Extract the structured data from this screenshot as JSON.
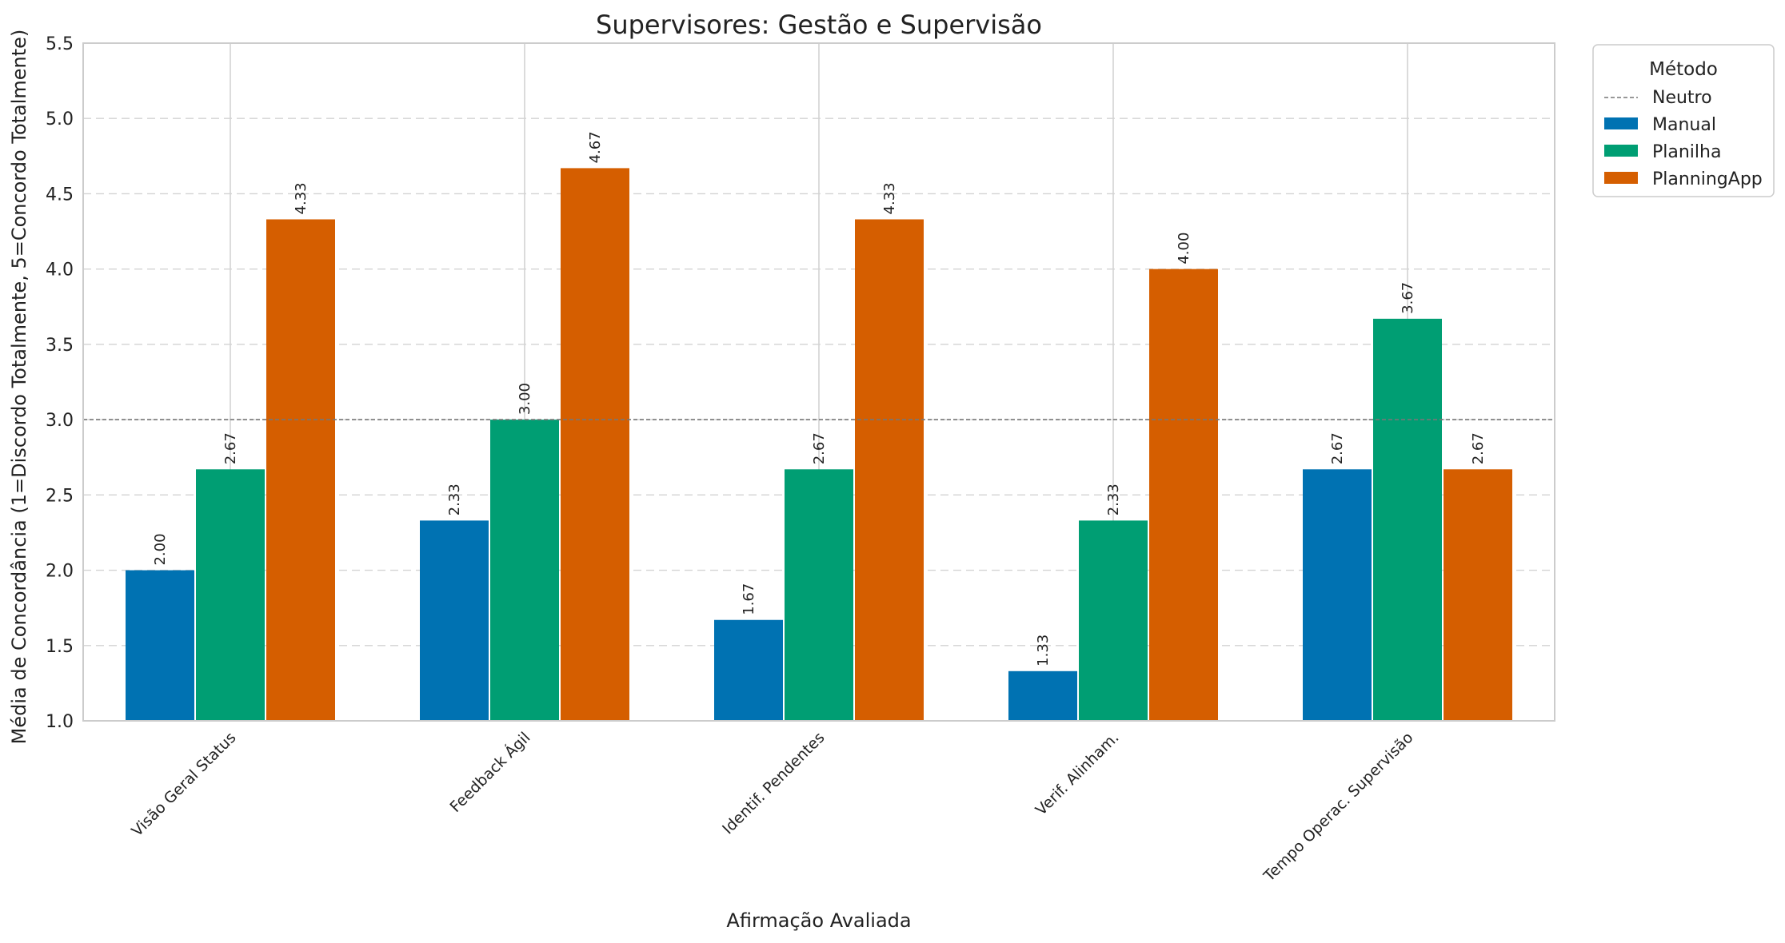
{
  "chart_data": {
    "type": "bar",
    "title": "Supervisores: Gestão e Supervisão",
    "xlabel": "Afirmação Avaliada",
    "ylabel": "Média de Concordância (1=Discordo Totalmente, 5=Concordo Totalmente)",
    "ylim": [
      1.0,
      5.5
    ],
    "yticks": [
      "1.0",
      "1.5",
      "2.0",
      "2.5",
      "3.0",
      "3.5",
      "4.0",
      "4.5",
      "5.0",
      "5.5"
    ],
    "categories": [
      "Visão Geral Status",
      "Feedback Ágil",
      "Identif. Pendentes",
      "Verif. Alinham.",
      "Tempo Operac. Supervisão"
    ],
    "series": [
      {
        "name": "Manual",
        "color": "#0072b2",
        "values": [
          2.0,
          2.33,
          1.67,
          1.33,
          2.67
        ],
        "labels": [
          "2.00",
          "2.33",
          "1.67",
          "1.33",
          "2.67"
        ]
      },
      {
        "name": "Planilha",
        "color": "#009e73",
        "values": [
          2.67,
          3.0,
          2.67,
          2.33,
          3.67
        ],
        "labels": [
          "2.67",
          "3.00",
          "2.67",
          "2.33",
          "3.67"
        ]
      },
      {
        "name": "PlanningApp",
        "color": "#d55e00",
        "values": [
          4.33,
          4.67,
          4.33,
          4.0,
          2.67
        ],
        "labels": [
          "4.33",
          "4.67",
          "4.33",
          "4.00",
          "2.67"
        ]
      }
    ],
    "reference_line": {
      "name": "Neutro",
      "value": 3.0,
      "style": "dashed",
      "color": "#777777"
    },
    "legend": {
      "title": "Método",
      "placement": "outside-top-right"
    },
    "grid": {
      "y": "dashed",
      "x": "solid"
    }
  }
}
